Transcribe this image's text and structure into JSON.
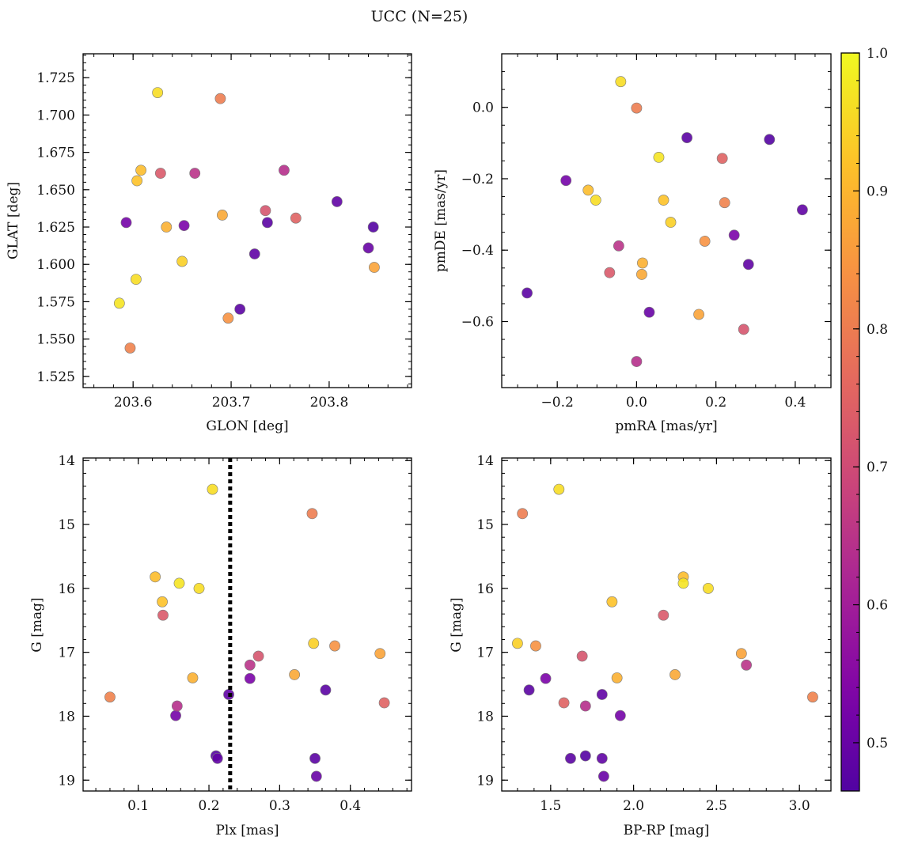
{
  "figure": {
    "title": "UCC (N=25)"
  },
  "colormap": {
    "name": "plasma",
    "range": [
      0.465,
      1.0
    ],
    "ticks": [
      0.5,
      0.6,
      0.7,
      0.8,
      0.9,
      1.0
    ],
    "tick_labels": [
      "0.5",
      "0.6",
      "0.7",
      "0.8",
      "0.9",
      "1.0"
    ]
  },
  "stars": [
    {
      "glon": 203.625,
      "glat": 1.715,
      "pmra": -0.04,
      "pmde": 0.072,
      "plx": 0.205,
      "g": 14.45,
      "bprp": 1.55,
      "prob": 0.96
    },
    {
      "glon": 203.689,
      "glat": 1.711,
      "pmra": 0.0,
      "pmde": -0.002,
      "plx": 0.346,
      "g": 14.83,
      "bprp": 1.33,
      "prob": 0.8
    },
    {
      "glon": 203.608,
      "glat": 1.663,
      "pmra": -0.122,
      "pmde": -0.232,
      "plx": 0.124,
      "g": 15.82,
      "bprp": 2.3,
      "prob": 0.91
    },
    {
      "glon": 203.628,
      "glat": 1.661,
      "pmra": -0.068,
      "pmde": -0.463,
      "plx": 0.135,
      "g": 16.42,
      "bprp": 2.18,
      "prob": 0.73
    },
    {
      "glon": 203.663,
      "glat": 1.661,
      "pmra": -0.045,
      "pmde": -0.388,
      "plx": 0.258,
      "g": 17.2,
      "bprp": 2.68,
      "prob": 0.65
    },
    {
      "glon": 203.604,
      "glat": 1.656,
      "pmra": 0.068,
      "pmde": -0.26,
      "plx": 0.134,
      "g": 16.21,
      "bprp": 1.87,
      "prob": 0.92
    },
    {
      "glon": 203.754,
      "glat": 1.663,
      "pmra": 0.0,
      "pmde": -0.712,
      "plx": 0.155,
      "g": 17.84,
      "bprp": 1.71,
      "prob": 0.64
    },
    {
      "glon": 203.593,
      "glat": 1.628,
      "pmra": -0.178,
      "pmde": -0.205,
      "plx": 0.153,
      "g": 17.99,
      "bprp": 1.92,
      "prob": 0.52
    },
    {
      "glon": 203.652,
      "glat": 1.626,
      "pmra": 0.246,
      "pmde": -0.358,
      "plx": 0.258,
      "g": 17.41,
      "bprp": 1.47,
      "prob": 0.53
    },
    {
      "glon": 203.634,
      "glat": 1.625,
      "pmra": 0.015,
      "pmde": -0.436,
      "plx": 0.177,
      "g": 17.4,
      "bprp": 1.9,
      "prob": 0.89
    },
    {
      "glon": 203.691,
      "glat": 1.633,
      "pmra": 0.013,
      "pmde": -0.468,
      "plx": 0.321,
      "g": 17.35,
      "bprp": 2.25,
      "prob": 0.88
    },
    {
      "glon": 203.735,
      "glat": 1.636,
      "pmra": 0.27,
      "pmde": -0.622,
      "plx": 0.27,
      "g": 17.06,
      "bprp": 1.69,
      "prob": 0.72
    },
    {
      "glon": 203.766,
      "glat": 1.631,
      "pmra": 0.216,
      "pmde": -0.143,
      "plx": 0.448,
      "g": 17.79,
      "bprp": 1.58,
      "prob": 0.75
    },
    {
      "glon": 203.737,
      "glat": 1.628,
      "pmra": -0.276,
      "pmde": -0.52,
      "plx": 0.365,
      "g": 17.59,
      "bprp": 1.37,
      "prob": 0.48
    },
    {
      "glon": 203.808,
      "glat": 1.642,
      "pmra": 0.418,
      "pmde": -0.287,
      "plx": 0.228,
      "g": 17.66,
      "bprp": 1.81,
      "prob": 0.49
    },
    {
      "glon": 203.845,
      "glat": 1.625,
      "pmra": 0.335,
      "pmde": -0.09,
      "plx": 0.21,
      "g": 18.62,
      "bprp": 1.71,
      "prob": 0.47
    },
    {
      "glon": 203.724,
      "glat": 1.607,
      "pmra": 0.282,
      "pmde": -0.44,
      "plx": 0.212,
      "g": 18.66,
      "bprp": 1.81,
      "prob": 0.49
    },
    {
      "glon": 203.709,
      "glat": 1.57,
      "pmra": 0.127,
      "pmde": -0.085,
      "plx": 0.35,
      "g": 18.66,
      "bprp": 1.62,
      "prob": 0.48
    },
    {
      "glon": 203.84,
      "glat": 1.611,
      "pmra": 0.032,
      "pmde": -0.574,
      "plx": 0.352,
      "g": 18.94,
      "bprp": 1.82,
      "prob": 0.5
    },
    {
      "glon": 203.846,
      "glat": 1.598,
      "pmra": 0.157,
      "pmde": -0.58,
      "plx": 0.442,
      "g": 17.02,
      "bprp": 2.65,
      "prob": 0.87
    },
    {
      "glon": 203.65,
      "glat": 1.602,
      "pmra": 0.086,
      "pmde": -0.322,
      "plx": 0.348,
      "g": 16.86,
      "bprp": 1.3,
      "prob": 0.94
    },
    {
      "glon": 203.603,
      "glat": 1.59,
      "pmra": -0.103,
      "pmde": -0.26,
      "plx": 0.186,
      "g": 16.0,
      "bprp": 2.45,
      "prob": 0.96
    },
    {
      "glon": 203.586,
      "glat": 1.574,
      "pmra": 0.056,
      "pmde": -0.14,
      "plx": 0.158,
      "g": 15.92,
      "bprp": 2.3,
      "prob": 0.97
    },
    {
      "glon": 203.697,
      "glat": 1.564,
      "pmra": 0.172,
      "pmde": -0.375,
      "plx": 0.378,
      "g": 16.9,
      "bprp": 1.41,
      "prob": 0.84
    },
    {
      "glon": 203.597,
      "glat": 1.544,
      "pmra": 0.222,
      "pmde": -0.267,
      "plx": 0.06,
      "g": 17.7,
      "bprp": 3.08,
      "prob": 0.81
    }
  ],
  "chart_data": [
    {
      "type": "scatter",
      "x_field": "glon",
      "y_field": "glat",
      "xlabel": "GLON [deg]",
      "ylabel": "GLAT [deg]",
      "xlim": [
        203.549,
        203.884
      ],
      "ylim": [
        1.5175,
        1.741
      ],
      "xticks": [
        203.6,
        203.7,
        203.8
      ],
      "xtick_labels": [
        "203.6",
        "203.7",
        "203.8"
      ],
      "yticks": [
        1.525,
        1.55,
        1.575,
        1.6,
        1.625,
        1.65,
        1.675,
        1.7,
        1.725
      ],
      "ytick_labels": [
        "1.525",
        "1.550",
        "1.575",
        "1.600",
        "1.625",
        "1.650",
        "1.675",
        "1.700",
        "1.725"
      ],
      "x_minor": 0.02,
      "y_minor": 0.005,
      "y_inverted": false
    },
    {
      "type": "scatter",
      "x_field": "pmra",
      "y_field": "pmde",
      "xlabel": "pmRA [mas/yr]",
      "ylabel": "pmDE [mas/yr]",
      "xlim": [
        -0.34,
        0.49
      ],
      "ylim": [
        -0.785,
        0.15
      ],
      "xticks": [
        -0.2,
        0.0,
        0.2,
        0.4
      ],
      "xtick_labels": [
        "−0.2",
        "0.0",
        "0.2",
        "0.4"
      ],
      "yticks": [
        -0.6,
        -0.4,
        -0.2,
        0.0
      ],
      "ytick_labels": [
        "−0.6",
        "−0.4",
        "−0.2",
        "0.0"
      ],
      "x_minor": 0.05,
      "y_minor": 0.05,
      "y_inverted": false
    },
    {
      "type": "scatter",
      "x_field": "plx",
      "y_field": "g",
      "xlabel": "Plx [mas]",
      "ylabel": "G [mag]",
      "xlim": [
        0.022,
        0.4865
      ],
      "ylim": [
        13.96,
        19.17
      ],
      "xticks": [
        0.1,
        0.2,
        0.3,
        0.4
      ],
      "xtick_labels": [
        "0.1",
        "0.2",
        "0.3",
        "0.4"
      ],
      "yticks": [
        14,
        15,
        16,
        17,
        18,
        19
      ],
      "ytick_labels": [
        "14",
        "15",
        "16",
        "17",
        "18",
        "19"
      ],
      "x_minor": 0.02,
      "y_minor": 0.2,
      "y_inverted": true,
      "vline": 0.23
    },
    {
      "type": "scatter",
      "x_field": "bprp",
      "y_field": "g",
      "xlabel": "BP-RP [mag]",
      "ylabel": "G [mag]",
      "xlim": [
        1.205,
        3.19
      ],
      "ylim": [
        13.96,
        19.17
      ],
      "xticks": [
        1.5,
        2.0,
        2.5,
        3.0
      ],
      "xtick_labels": [
        "1.5",
        "2.0",
        "2.5",
        "3.0"
      ],
      "yticks": [
        14,
        15,
        16,
        17,
        18,
        19
      ],
      "ytick_labels": [
        "14",
        "15",
        "16",
        "17",
        "18",
        "19"
      ],
      "x_minor": 0.1,
      "y_minor": 0.2,
      "y_inverted": true
    }
  ]
}
